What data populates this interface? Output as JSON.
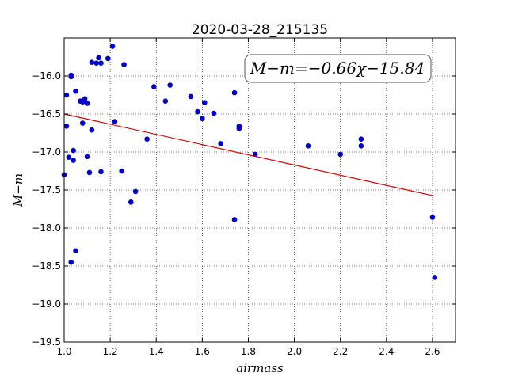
{
  "chart_data": {
    "type": "scatter",
    "title": "2020-03-28_215135",
    "xlabel": "airmass",
    "ylabel": "M−m",
    "xlim": [
      1.0,
      2.7
    ],
    "ylim": [
      -19.5,
      -15.5
    ],
    "y_inverted": true,
    "grid": true,
    "grid_style": "dotted",
    "x_ticks": [
      1.0,
      1.2,
      1.4,
      1.6,
      1.8,
      2.0,
      2.2,
      2.4,
      2.6
    ],
    "x_tick_labels": [
      "1.0",
      "1.2",
      "1.4",
      "1.6",
      "1.8",
      "2.0",
      "2.2",
      "2.4",
      "2.6"
    ],
    "y_ticks": [
      -16.0,
      -16.5,
      -17.0,
      -17.5,
      -18.0,
      -18.5,
      -19.0,
      -19.5
    ],
    "y_tick_labels": [
      "−16.0",
      "−16.5",
      "−17.0",
      "−17.5",
      "−18.0",
      "−18.5",
      "−19.0",
      "−19.5"
    ],
    "annotation": "M−m=−0.66χ−15.84",
    "annotation_placement": "top-right",
    "marker_color": "#0000cc",
    "line_color": "#dd0000",
    "series": [
      {
        "type": "scatter",
        "points": [
          [
            1.0,
            -17.3
          ],
          [
            1.01,
            -16.25
          ],
          [
            1.01,
            -16.66
          ],
          [
            1.02,
            -17.07
          ],
          [
            1.03,
            -15.99
          ],
          [
            1.03,
            -16.01
          ],
          [
            1.03,
            -18.45
          ],
          [
            1.04,
            -16.98
          ],
          [
            1.04,
            -17.11
          ],
          [
            1.05,
            -16.2
          ],
          [
            1.05,
            -18.3
          ],
          [
            1.07,
            -16.33
          ],
          [
            1.08,
            -16.62
          ],
          [
            1.08,
            -16.34
          ],
          [
            1.09,
            -16.3
          ],
          [
            1.1,
            -16.36
          ],
          [
            1.1,
            -17.06
          ],
          [
            1.11,
            -17.27
          ],
          [
            1.12,
            -16.71
          ],
          [
            1.12,
            -15.82
          ],
          [
            1.14,
            -15.83
          ],
          [
            1.15,
            -15.76
          ],
          [
            1.16,
            -15.83
          ],
          [
            1.16,
            -17.26
          ],
          [
            1.19,
            -15.77
          ],
          [
            1.21,
            -15.61
          ],
          [
            1.22,
            -16.6
          ],
          [
            1.25,
            -17.25
          ],
          [
            1.26,
            -15.85
          ],
          [
            1.29,
            -17.66
          ],
          [
            1.31,
            -17.52
          ],
          [
            1.36,
            -16.83
          ],
          [
            1.39,
            -16.14
          ],
          [
            1.44,
            -16.33
          ],
          [
            1.46,
            -16.12
          ],
          [
            1.55,
            -16.27
          ],
          [
            1.58,
            -16.47
          ],
          [
            1.6,
            -16.56
          ],
          [
            1.61,
            -16.35
          ],
          [
            1.65,
            -16.49
          ],
          [
            1.68,
            -16.89
          ],
          [
            1.74,
            -16.22
          ],
          [
            1.74,
            -17.89
          ],
          [
            1.76,
            -16.66
          ],
          [
            1.76,
            -16.69
          ],
          [
            1.83,
            -17.03
          ],
          [
            2.06,
            -16.92
          ],
          [
            2.2,
            -17.03
          ],
          [
            2.29,
            -16.83
          ],
          [
            2.29,
            -16.92
          ],
          [
            2.6,
            -17.86
          ],
          [
            2.61,
            -18.65
          ]
        ]
      },
      {
        "type": "line",
        "x": [
          1.0,
          2.61
        ],
        "y": [
          -16.5,
          -17.58
        ]
      }
    ]
  }
}
